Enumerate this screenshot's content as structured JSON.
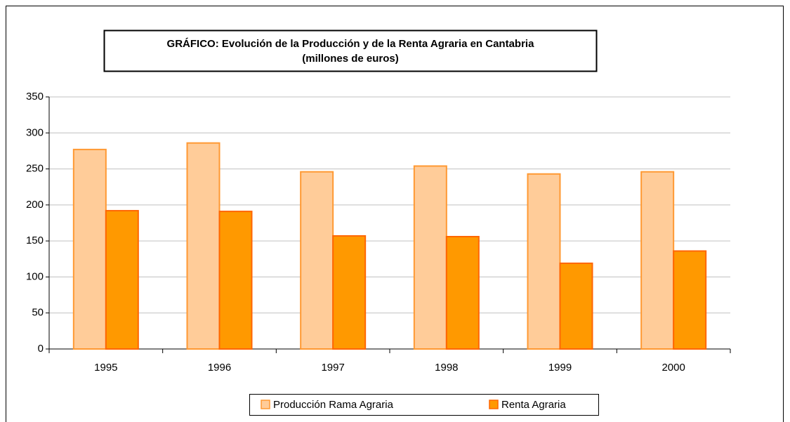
{
  "chart_data": {
    "type": "bar",
    "title": "GRÁFICO: Evolución de la Producción y de la Renta Agraria en Cantabria",
    "subtitle": "(millones de euros)",
    "categories": [
      "1995",
      "1996",
      "1997",
      "1998",
      "1999",
      "2000"
    ],
    "series": [
      {
        "name": "Producción Rama Agraria",
        "color": "#ffcc99",
        "stroke": "#ff9933",
        "values": [
          277,
          286,
          246,
          254,
          243,
          246
        ]
      },
      {
        "name": "Renta Agraria",
        "color": "#ff9900",
        "stroke": "#ff6600",
        "values": [
          192,
          191,
          157,
          156,
          119,
          136
        ]
      }
    ],
    "ylim": [
      0,
      350
    ],
    "yticks": [
      0,
      50,
      100,
      150,
      200,
      250,
      300,
      350
    ],
    "grid": true,
    "legend": "bottom"
  }
}
